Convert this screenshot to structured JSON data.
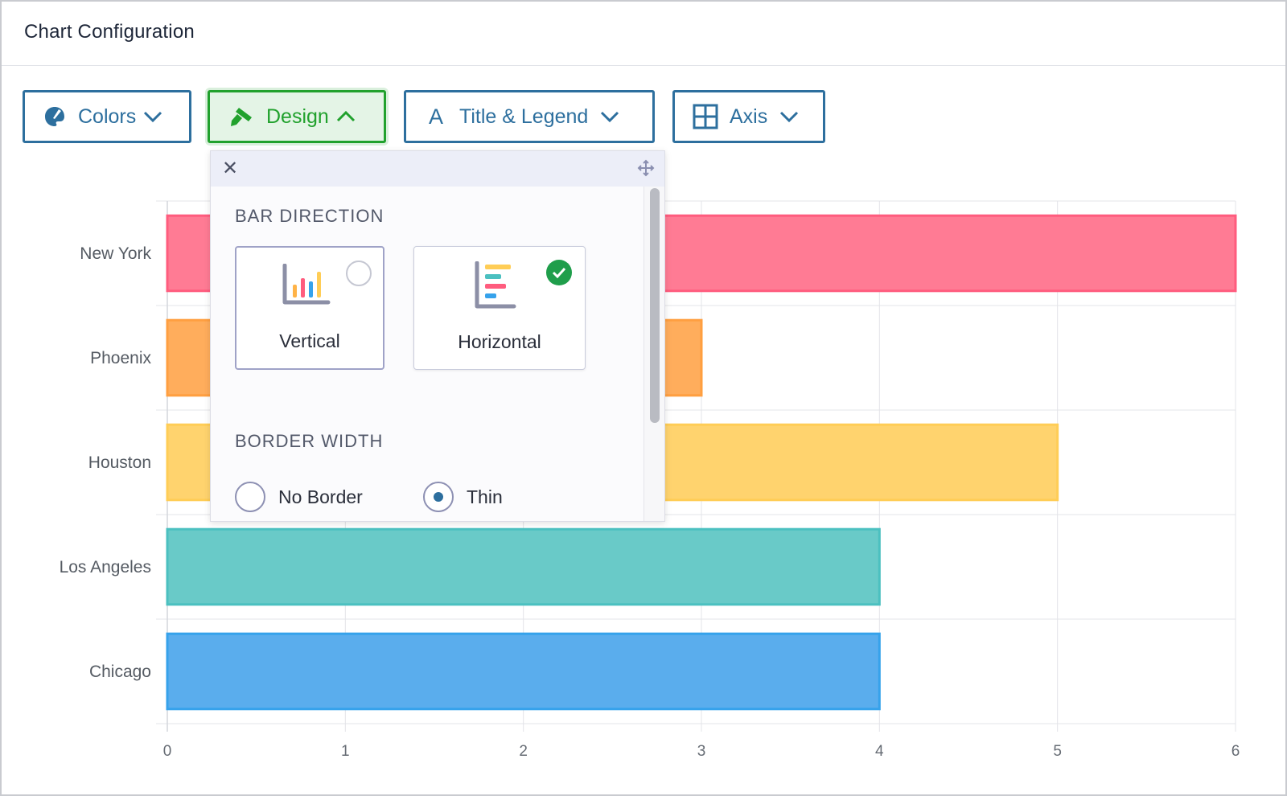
{
  "header": {
    "title": "Chart Configuration"
  },
  "toolbar": {
    "colors_label": "Colors",
    "design_label": "Design",
    "title_legend_label": "Title & Legend",
    "title_legend_icon_glyph": "A",
    "axis_label": "Axis"
  },
  "popover": {
    "bar_direction_title": "BAR DIRECTION",
    "vertical_label": "Vertical",
    "horizontal_label": "Horizontal",
    "selected_direction": "Horizontal",
    "border_width_title": "BORDER WIDTH",
    "no_border_label": "No Border",
    "thin_label": "Thin",
    "selected_border": "Thin"
  },
  "colors": {
    "accent": "#2d6f9e",
    "active_green": "#21a12d",
    "check_green": "#1f9e4b"
  },
  "chart_data": {
    "type": "bar",
    "orientation": "horizontal",
    "categories": [
      "New York",
      "Phoenix",
      "Houston",
      "Los Angeles",
      "Chicago"
    ],
    "values": [
      6,
      3,
      5,
      4,
      4
    ],
    "colors": [
      "#ff7b94",
      "#ffad5c",
      "#ffd36e",
      "#69cac8",
      "#5aaded"
    ],
    "border_colors": [
      "#ff5c7e",
      "#ff9f40",
      "#ffcd56",
      "#4bc0c0",
      "#36a2eb"
    ],
    "xlim": [
      0,
      6
    ],
    "x_ticks": [
      "0",
      "1",
      "2",
      "3",
      "4",
      "5",
      "6"
    ],
    "grid": true
  }
}
